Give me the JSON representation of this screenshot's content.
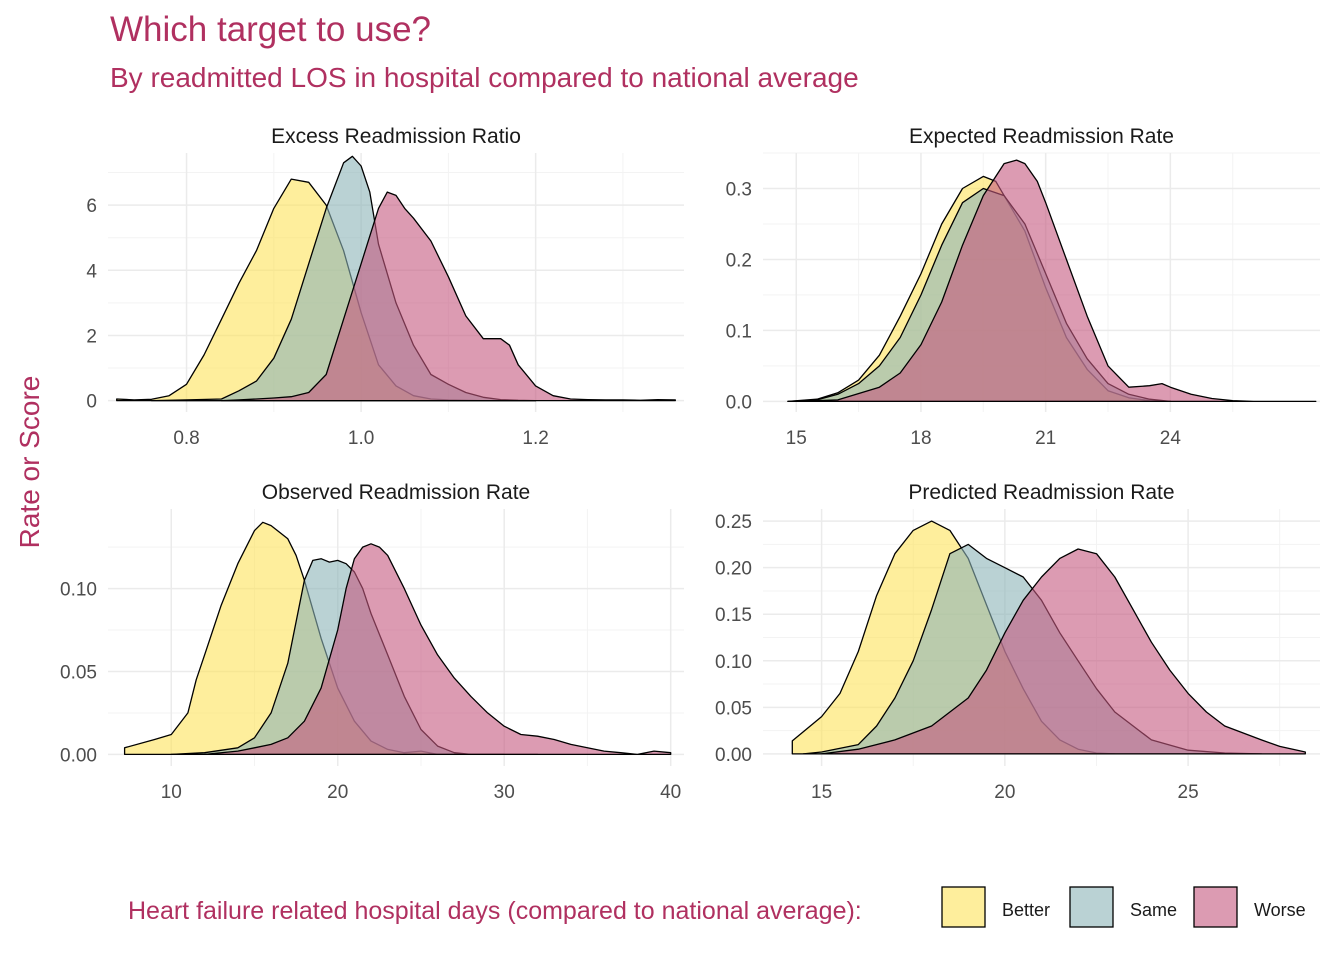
{
  "title": "Which target to use?",
  "subtitle": "By readmitted LOS in hospital compared to national average",
  "ylabel": "Rate or Score",
  "legend": {
    "title": "Heart failure related hospital days (compared to national average):",
    "items": [
      {
        "label": "Better",
        "color": "#FDE25A"
      },
      {
        "label": "Same",
        "color": "#8CB4B8"
      },
      {
        "label": "Worse",
        "color": "#C5587F"
      }
    ],
    "position": "bottom"
  },
  "colors": {
    "title": "#B03060",
    "grid": "#EBEBEB",
    "outline": "#000000"
  },
  "chart_data": [
    {
      "type": "area",
      "title": "Excess Readmission Ratio",
      "xlim": [
        0.71,
        1.37
      ],
      "ylim": [
        -0.35,
        7.6
      ],
      "xticks": [
        0.8,
        1.0,
        1.2
      ],
      "xtick_labels": [
        "0.8",
        "1.0",
        "1.2"
      ],
      "yticks": [
        0,
        2,
        4,
        6
      ],
      "ytick_labels": [
        "0",
        "2",
        "4",
        "6"
      ],
      "series": [
        {
          "name": "Better",
          "x": [
            0.72,
            0.74,
            0.76,
            0.78,
            0.8,
            0.82,
            0.84,
            0.86,
            0.88,
            0.9,
            0.92,
            0.94,
            0.96,
            0.98,
            1.0,
            1.02,
            1.04,
            1.06,
            1.08,
            1.1,
            1.12,
            1.14,
            1.16,
            1.18,
            1.2
          ],
          "values": [
            0.05,
            0.02,
            0.04,
            0.15,
            0.5,
            1.4,
            2.5,
            3.6,
            4.6,
            5.9,
            6.8,
            6.7,
            6.0,
            4.6,
            2.7,
            1.1,
            0.45,
            0.15,
            0.05,
            0.02,
            0.01,
            0.0,
            0.0,
            0.0,
            0.0
          ]
        },
        {
          "name": "Same",
          "x": [
            0.76,
            0.8,
            0.84,
            0.86,
            0.88,
            0.9,
            0.92,
            0.94,
            0.96,
            0.97,
            0.98,
            0.99,
            1.0,
            1.01,
            1.02,
            1.04,
            1.06,
            1.08,
            1.1,
            1.12,
            1.14,
            1.16,
            1.18,
            1.2
          ],
          "values": [
            0.0,
            0.02,
            0.05,
            0.3,
            0.6,
            1.3,
            2.5,
            4.2,
            5.9,
            6.6,
            7.3,
            7.5,
            7.2,
            6.4,
            4.8,
            3.0,
            1.7,
            0.8,
            0.5,
            0.25,
            0.1,
            0.03,
            0.01,
            0.0
          ]
        },
        {
          "name": "Worse",
          "x": [
            0.84,
            0.86,
            0.88,
            0.9,
            0.92,
            0.94,
            0.96,
            0.98,
            1.0,
            1.02,
            1.03,
            1.04,
            1.05,
            1.06,
            1.08,
            1.1,
            1.12,
            1.14,
            1.16,
            1.17,
            1.18,
            1.2,
            1.22,
            1.24,
            1.26,
            1.28,
            1.3,
            1.32,
            1.34,
            1.36
          ],
          "values": [
            0.0,
            0.02,
            0.05,
            0.08,
            0.12,
            0.25,
            0.8,
            2.5,
            4.2,
            5.9,
            6.4,
            6.3,
            5.9,
            5.6,
            4.9,
            3.8,
            2.6,
            1.9,
            1.9,
            1.7,
            1.1,
            0.45,
            0.15,
            0.05,
            0.03,
            0.02,
            0.02,
            0.01,
            0.03,
            0.02
          ]
        }
      ]
    },
    {
      "type": "area",
      "title": "Expected Readmission Rate",
      "xlim": [
        14.2,
        27.6
      ],
      "ylim": [
        -0.015,
        0.35
      ],
      "xticks": [
        15,
        18,
        21,
        24
      ],
      "xtick_labels": [
        "15",
        "18",
        "21",
        "24"
      ],
      "yticks": [
        0.0,
        0.1,
        0.2,
        0.3
      ],
      "ytick_labels": [
        "0.0",
        "0.1",
        "0.2",
        "0.3"
      ],
      "series": [
        {
          "name": "Better",
          "x": [
            14.8,
            15.5,
            16.0,
            16.5,
            17.0,
            17.5,
            18.0,
            18.5,
            19.0,
            19.5,
            19.8,
            20.0,
            20.5,
            21.0,
            21.5,
            22.0,
            22.5,
            23.0,
            23.5,
            24.0
          ],
          "values": [
            0.0,
            0.003,
            0.012,
            0.03,
            0.065,
            0.12,
            0.18,
            0.25,
            0.3,
            0.317,
            0.31,
            0.29,
            0.24,
            0.16,
            0.09,
            0.045,
            0.015,
            0.005,
            0.001,
            0.0
          ]
        },
        {
          "name": "Same",
          "x": [
            14.8,
            15.5,
            16.0,
            16.5,
            17.0,
            17.5,
            18.0,
            18.5,
            19.0,
            19.5,
            20.0,
            20.5,
            21.0,
            21.5,
            22.0,
            22.5,
            23.0,
            23.5,
            24.0
          ],
          "values": [
            0.0,
            0.002,
            0.01,
            0.025,
            0.05,
            0.09,
            0.15,
            0.22,
            0.28,
            0.3,
            0.29,
            0.25,
            0.18,
            0.11,
            0.06,
            0.025,
            0.01,
            0.003,
            0.0
          ]
        },
        {
          "name": "Worse",
          "x": [
            15.0,
            16.0,
            17.0,
            17.5,
            18.0,
            18.5,
            19.0,
            19.5,
            20.0,
            20.3,
            20.5,
            20.8,
            21.0,
            21.5,
            22.0,
            22.5,
            23.0,
            23.5,
            23.8,
            24.0,
            24.5,
            25.0,
            25.5,
            26.0,
            26.5,
            27.0,
            27.5
          ],
          "values": [
            0.0,
            0.002,
            0.02,
            0.04,
            0.08,
            0.14,
            0.22,
            0.29,
            0.335,
            0.34,
            0.335,
            0.31,
            0.28,
            0.2,
            0.12,
            0.05,
            0.02,
            0.022,
            0.025,
            0.02,
            0.01,
            0.004,
            0.001,
            0.0,
            0.0,
            0.0,
            0.0
          ]
        }
      ]
    },
    {
      "type": "area",
      "title": "Observed Readmission Rate",
      "xlim": [
        6.2,
        40.8
      ],
      "ylim": [
        -0.007,
        0.148
      ],
      "xticks": [
        10,
        20,
        30,
        40
      ],
      "xtick_labels": [
        "10",
        "20",
        "30",
        "40"
      ],
      "yticks": [
        0.0,
        0.05,
        0.1
      ],
      "ytick_labels": [
        "0.00",
        "0.05",
        "0.10"
      ],
      "series": [
        {
          "name": "Better",
          "x": [
            7.2,
            9,
            10,
            11,
            11.5,
            12,
            13,
            14,
            15,
            15.5,
            16,
            17,
            17.5,
            18,
            19,
            20,
            21,
            22,
            23,
            24,
            25,
            26,
            27,
            28,
            30
          ],
          "values": [
            0.004,
            0.009,
            0.012,
            0.025,
            0.045,
            0.06,
            0.09,
            0.115,
            0.135,
            0.14,
            0.138,
            0.13,
            0.12,
            0.105,
            0.07,
            0.04,
            0.02,
            0.008,
            0.003,
            0.001,
            0.002,
            0.0,
            0.0,
            0.0,
            0.0
          ]
        },
        {
          "name": "Same",
          "x": [
            10,
            12,
            14,
            15,
            16,
            17,
            17.5,
            18,
            18.5,
            19,
            19.5,
            20,
            20.5,
            21,
            21.5,
            22,
            23,
            24,
            25,
            26,
            27,
            28,
            30,
            32
          ],
          "values": [
            0.0,
            0.001,
            0.004,
            0.01,
            0.025,
            0.055,
            0.08,
            0.105,
            0.117,
            0.118,
            0.116,
            0.117,
            0.115,
            0.11,
            0.1,
            0.085,
            0.06,
            0.035,
            0.015,
            0.005,
            0.001,
            0.0,
            0.0,
            0.0
          ]
        },
        {
          "name": "Worse",
          "x": [
            12,
            14,
            15,
            16,
            17,
            18,
            19,
            20,
            20.5,
            21,
            21.5,
            22,
            22.5,
            23,
            24,
            25,
            26,
            27,
            28,
            29,
            30,
            31,
            32,
            33,
            34,
            35,
            36,
            37,
            38,
            39,
            40
          ],
          "values": [
            0.0,
            0.002,
            0.004,
            0.006,
            0.01,
            0.02,
            0.04,
            0.075,
            0.1,
            0.118,
            0.125,
            0.127,
            0.125,
            0.12,
            0.1,
            0.078,
            0.06,
            0.046,
            0.035,
            0.025,
            0.017,
            0.012,
            0.011,
            0.009,
            0.006,
            0.004,
            0.002,
            0.001,
            0.0,
            0.002,
            0.001
          ]
        }
      ]
    },
    {
      "type": "area",
      "title": "Predicted Readmission Rate",
      "xlim": [
        13.4,
        28.6
      ],
      "ylim": [
        -0.013,
        0.263
      ],
      "xticks": [
        15,
        20,
        25
      ],
      "xtick_labels": [
        "15",
        "20",
        "25"
      ],
      "yticks": [
        0.0,
        0.05,
        0.1,
        0.15,
        0.2,
        0.25
      ],
      "ytick_labels": [
        "0.00",
        "0.05",
        "0.10",
        "0.15",
        "0.20",
        "0.25"
      ],
      "series": [
        {
          "name": "Better",
          "x": [
            14.2,
            15,
            15.5,
            16,
            16.5,
            17,
            17.5,
            18,
            18.5,
            19,
            19.5,
            20,
            20.5,
            21,
            21.5,
            22,
            22.5,
            23
          ],
          "values": [
            0.014,
            0.04,
            0.065,
            0.11,
            0.17,
            0.215,
            0.24,
            0.25,
            0.24,
            0.21,
            0.16,
            0.11,
            0.07,
            0.035,
            0.015,
            0.005,
            0.001,
            0.0
          ]
        },
        {
          "name": "Same",
          "x": [
            14.5,
            15,
            16,
            16.5,
            17,
            17.5,
            18,
            18.5,
            19,
            19.5,
            20,
            20.5,
            21,
            21.5,
            22,
            22.5,
            23,
            24,
            25,
            26,
            27
          ],
          "values": [
            0.0,
            0.002,
            0.01,
            0.03,
            0.06,
            0.1,
            0.155,
            0.215,
            0.225,
            0.21,
            0.2,
            0.19,
            0.165,
            0.13,
            0.1,
            0.07,
            0.045,
            0.015,
            0.004,
            0.001,
            0.0
          ]
        },
        {
          "name": "Worse",
          "x": [
            15,
            16,
            17,
            18,
            19,
            19.5,
            20,
            20.5,
            21,
            21.5,
            22,
            22.5,
            23,
            23.5,
            24,
            24.5,
            25,
            25.5,
            26,
            27,
            27.5,
            28.2
          ],
          "values": [
            0.0,
            0.005,
            0.015,
            0.03,
            0.06,
            0.09,
            0.13,
            0.165,
            0.19,
            0.21,
            0.22,
            0.215,
            0.19,
            0.155,
            0.12,
            0.09,
            0.065,
            0.045,
            0.03,
            0.015,
            0.008,
            0.002
          ]
        }
      ]
    }
  ]
}
